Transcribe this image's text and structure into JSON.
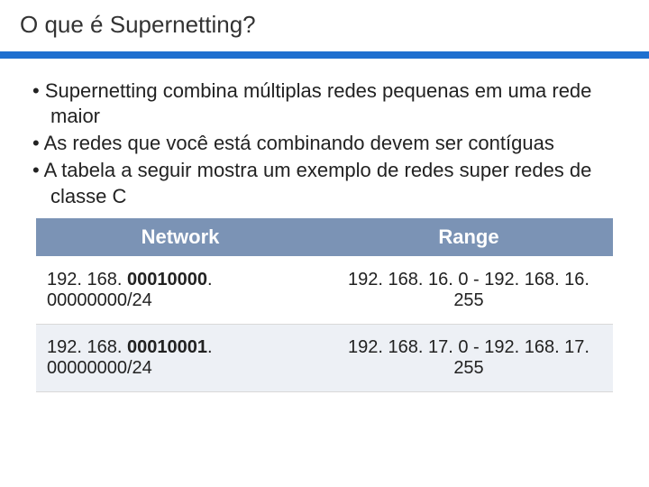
{
  "colors": {
    "title_text": "#333333",
    "band": "#1e6fcf",
    "body_text": "#222222",
    "header_bg": "#7b93b5",
    "header_text": "#ffffff",
    "row_even_bg": "#ffffff",
    "row_odd_bg": "#edf0f5",
    "row_border": "#d9d9d9"
  },
  "typography": {
    "title_fontsize": 26,
    "bullet_fontsize": 22,
    "header_fontsize": 22,
    "cell_fontsize": 20
  },
  "title": "O que é Supernetting?",
  "bullets": [
    "Supernetting combina múltiplas redes pequenas em uma rede maior",
    "As redes que você está combinando devem ser contíguas",
    "A tabela a seguir mostra um exemplo de redes super redes de classe C"
  ],
  "table": {
    "columns": [
      "Network",
      "Range"
    ],
    "column_widths_pct": [
      50,
      50
    ],
    "rows": [
      {
        "network_prefix": "192. 168. ",
        "network_bold": "00010000",
        "network_suffix": ". 00000000/24",
        "range": "192. 168. 16. 0 - 192. 168. 16. 255"
      },
      {
        "network_prefix": "192. 168. ",
        "network_bold": "00010001",
        "network_suffix": ". 00000000/24",
        "range": "192. 168. 17. 0 - 192. 168. 17. 255"
      }
    ]
  }
}
